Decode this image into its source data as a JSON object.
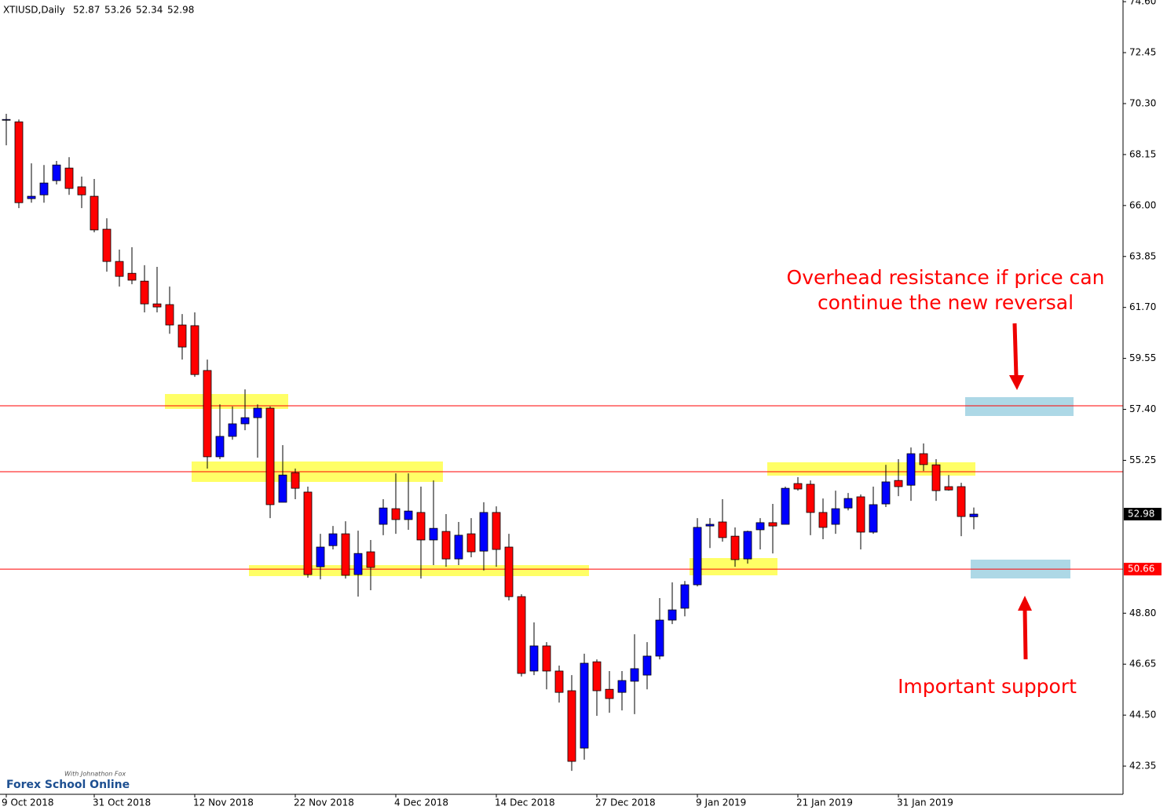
{
  "chart_data": {
    "type": "candlestick",
    "title": "XTIUSD,Daily",
    "categories": [
      "9 Oct 2018",
      null,
      null,
      null,
      null,
      null,
      null,
      "31 Oct 2018",
      null,
      null,
      null,
      null,
      null,
      null,
      null,
      "12 Nov 2018",
      null,
      null,
      null,
      null,
      null,
      null,
      null,
      "22 Nov 2018",
      null,
      null,
      null,
      null,
      null,
      null,
      null,
      "4 Dec 2018",
      null,
      null,
      null,
      null,
      null,
      null,
      null,
      "14 Dec 2018",
      null,
      null,
      null,
      null,
      null,
      null,
      null,
      "27 Dec 2018",
      null,
      null,
      null,
      null,
      null,
      null,
      null,
      "9 Jan 2019",
      null,
      null,
      null,
      null,
      null,
      null,
      null,
      "21 Jan 2019",
      null,
      null,
      null,
      null,
      null,
      null,
      null,
      "31 Jan 2019",
      null,
      null,
      null,
      null,
      null,
      null
    ],
    "open": [
      69.6,
      69.53,
      66.29,
      66.45,
      67.05,
      67.58,
      66.79,
      66.39,
      65.0,
      63.64,
      63.14,
      62.81,
      61.85,
      61.82,
      60.96,
      60.93,
      59.04,
      55.4,
      56.26,
      56.79,
      57.05,
      57.45,
      53.48,
      54.73,
      53.91,
      50.76,
      51.65,
      52.15,
      50.43,
      51.39,
      52.55,
      53.21,
      52.75,
      53.05,
      51.89,
      52.25,
      51.09,
      52.15,
      51.42,
      53.05,
      51.59,
      49.5,
      46.36,
      47.42,
      46.36,
      45.53,
      43.11,
      46.75,
      45.59,
      45.46,
      45.93,
      46.19,
      46.99,
      48.51,
      49.01,
      50.0,
      52.48,
      52.65,
      52.05,
      51.09,
      52.32,
      52.62,
      52.55,
      54.27,
      54.24,
      53.05,
      52.55,
      53.24,
      53.71,
      52.22,
      53.41,
      54.4,
      54.2,
      55.53,
      55.06,
      54.14,
      54.14,
      52.87
    ],
    "high": [
      69.87,
      69.63,
      67.78,
      67.71,
      67.88,
      68.04,
      67.22,
      67.12,
      65.46,
      64.14,
      64.24,
      63.48,
      63.41,
      62.58,
      61.42,
      61.49,
      59.5,
      57.61,
      57.52,
      58.24,
      57.61,
      57.52,
      55.89,
      54.9,
      54.14,
      52.15,
      52.48,
      52.68,
      52.28,
      51.89,
      53.61,
      54.7,
      54.7,
      54.14,
      54.4,
      52.98,
      52.65,
      52.81,
      53.48,
      53.31,
      52.15,
      49.6,
      48.41,
      47.58,
      46.59,
      46.19,
      47.09,
      46.85,
      46.36,
      46.36,
      47.91,
      47.58,
      49.44,
      50.1,
      50.16,
      52.81,
      52.81,
      53.61,
      52.42,
      52.28,
      52.81,
      53.41,
      54.14,
      54.54,
      54.4,
      53.64,
      53.97,
      53.87,
      53.81,
      54.14,
      55.06,
      55.3,
      55.79,
      55.96,
      55.3,
      54.63,
      54.3,
      53.26
    ],
    "low": [
      68.54,
      65.89,
      66.12,
      66.12,
      66.89,
      66.45,
      65.89,
      64.87,
      63.21,
      62.58,
      62.68,
      61.49,
      61.49,
      60.59,
      59.5,
      58.77,
      54.9,
      55.3,
      56.12,
      56.52,
      55.36,
      52.81,
      53.48,
      53.61,
      50.3,
      50.23,
      51.49,
      50.26,
      49.5,
      49.77,
      52.09,
      52.15,
      52.32,
      50.26,
      50.83,
      50.76,
      50.83,
      51.16,
      50.6,
      50.76,
      49.34,
      46.13,
      46.19,
      45.59,
      45.03,
      42.15,
      42.62,
      44.47,
      44.6,
      44.7,
      44.54,
      45.59,
      46.85,
      48.34,
      48.67,
      49.93,
      51.55,
      51.82,
      50.76,
      50.89,
      51.49,
      51.32,
      52.55,
      53.97,
      52.09,
      51.92,
      52.15,
      53.14,
      51.49,
      52.15,
      53.28,
      53.74,
      53.54,
      54.8,
      53.54,
      53.97,
      52.05,
      52.34
    ],
    "close": [
      69.63,
      66.12,
      66.39,
      66.95,
      67.71,
      66.72,
      66.45,
      64.97,
      63.64,
      63.01,
      62.85,
      61.85,
      61.72,
      60.96,
      60.03,
      58.87,
      55.4,
      56.26,
      56.79,
      57.05,
      57.45,
      53.38,
      54.63,
      54.07,
      50.43,
      51.59,
      52.15,
      50.4,
      51.32,
      50.73,
      53.24,
      52.75,
      53.11,
      51.89,
      52.38,
      51.09,
      52.09,
      51.39,
      53.05,
      51.49,
      49.5,
      46.26,
      47.42,
      46.36,
      45.46,
      42.55,
      46.69,
      45.53,
      45.2,
      45.96,
      46.46,
      46.99,
      48.51,
      48.94,
      50.0,
      52.42,
      52.55,
      51.99,
      51.06,
      52.25,
      52.62,
      52.48,
      54.07,
      54.04,
      53.05,
      52.42,
      53.21,
      53.64,
      52.22,
      53.38,
      54.34,
      54.14,
      55.53,
      55.07,
      53.97,
      54.0,
      52.88,
      52.98
    ],
    "up_color": "#0000ff",
    "down_color": "#ff0000",
    "ylim": [
      41.16,
      74.67
    ],
    "yticks": [
      {
        "value": 74.6,
        "label": "74.60"
      },
      {
        "value": 72.45,
        "label": "72.45"
      },
      {
        "value": 70.3,
        "label": "70.30"
      },
      {
        "value": 68.15,
        "label": "68.15"
      },
      {
        "value": 66,
        "label": "66.00"
      },
      {
        "value": 63.85,
        "label": "63.85"
      },
      {
        "value": 61.7,
        "label": "61.70"
      },
      {
        "value": 59.55,
        "label": "59.55"
      },
      {
        "value": 57.4,
        "label": "57.40"
      },
      {
        "value": 55.25,
        "label": "55.25"
      },
      {
        "value": 48.8,
        "label": "48.80"
      },
      {
        "value": 46.65,
        "label": "46.65"
      },
      {
        "value": 44.5,
        "label": "44.50"
      },
      {
        "value": 42.35,
        "label": "42.35"
      }
    ],
    "hlines": [
      {
        "value": 57.55,
        "color": "#ff0000",
        "labeled": false
      },
      {
        "value": 54.77,
        "color": "#ff0000",
        "labeled": false
      },
      {
        "value": 50.66,
        "color": "#ff0000",
        "labeled": true
      }
    ],
    "annotations": [
      "Overhead resistance if price can",
      "continue the new reversal",
      "Important support"
    ]
  },
  "logo": {
    "name": "Forex School Online",
    "byline": "With Johnathon Fox"
  }
}
